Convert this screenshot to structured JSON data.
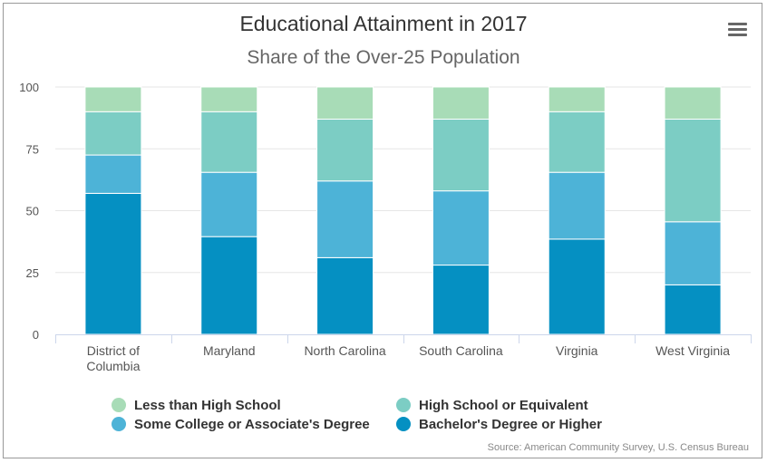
{
  "chart_data": {
    "type": "bar",
    "stacked": true,
    "title": "Educational Attainment in 2017",
    "subtitle": "Share of the Over-25 Population",
    "categories": [
      [
        "District of",
        "Columbia"
      ],
      [
        "Maryland"
      ],
      [
        "North Carolina"
      ],
      [
        "South Carolina"
      ],
      [
        "Virginia"
      ],
      [
        "West Virginia"
      ]
    ],
    "ylim": [
      0,
      100
    ],
    "yticks": [
      "0",
      "25",
      "50",
      "75",
      "100"
    ],
    "series": [
      {
        "name": "Bachelor's Degree or Higher",
        "color": "#0590c2",
        "values": [
          57,
          39.5,
          31,
          28,
          38.5,
          20
        ]
      },
      {
        "name": "Some College or Associate's Degree",
        "color": "#4db3d7",
        "values": [
          15.5,
          26,
          31,
          30,
          27,
          25.5
        ]
      },
      {
        "name": "High School or Equivalent",
        "color": "#7ccdc4",
        "values": [
          17.5,
          24.5,
          25,
          29,
          24.5,
          41.5
        ]
      },
      {
        "name": "Less than High School",
        "color": "#a8dcb7",
        "values": [
          10,
          10,
          13,
          13,
          10,
          13
        ]
      }
    ],
    "legend": [
      {
        "name": "Less than High School",
        "color": "#a8dcb7"
      },
      {
        "name": "High School or Equivalent",
        "color": "#7ccdc4"
      },
      {
        "name": "Some College or Associate's Degree",
        "color": "#4db3d7"
      },
      {
        "name": "Bachelor's Degree or Higher",
        "color": "#0590c2"
      }
    ],
    "legend_placement": "bottom",
    "source": "Source: American Community Survey, U.S. Census Bureau"
  },
  "menu_icon": "hamburger-menu-icon"
}
